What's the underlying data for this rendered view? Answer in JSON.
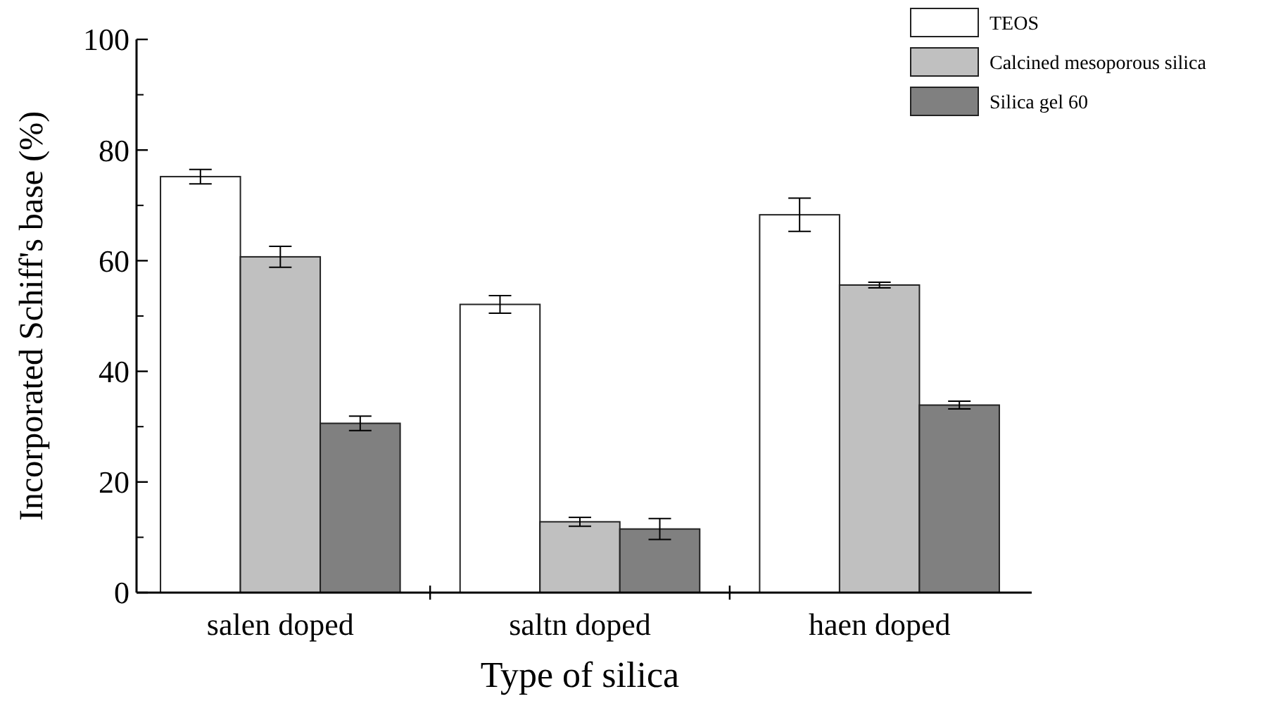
{
  "chart_data": {
    "type": "bar",
    "xlabel": "Type of silica",
    "ylabel": "Incorporated Schiff's base (%)",
    "categories": [
      "salen doped",
      "saltn doped",
      "haen doped"
    ],
    "series": [
      {
        "name": "TEOS",
        "color": "#ffffff",
        "values": [
          75.2,
          52.1,
          68.3
        ],
        "errors": [
          1.3,
          1.6,
          3.0
        ]
      },
      {
        "name": "Calcined mesoporous silica",
        "color": "#c0c0c0",
        "values": [
          60.7,
          12.8,
          55.6
        ],
        "errors": [
          1.9,
          0.8,
          0.5
        ]
      },
      {
        "name": "Silica gel 60",
        "color": "#808080",
        "values": [
          30.6,
          11.5,
          33.9
        ],
        "errors": [
          1.3,
          1.9,
          0.7
        ]
      }
    ],
    "ylim": [
      0,
      100
    ],
    "yticks": [
      0,
      20,
      40,
      60,
      80,
      100
    ],
    "legend": "top right",
    "grid": false
  }
}
